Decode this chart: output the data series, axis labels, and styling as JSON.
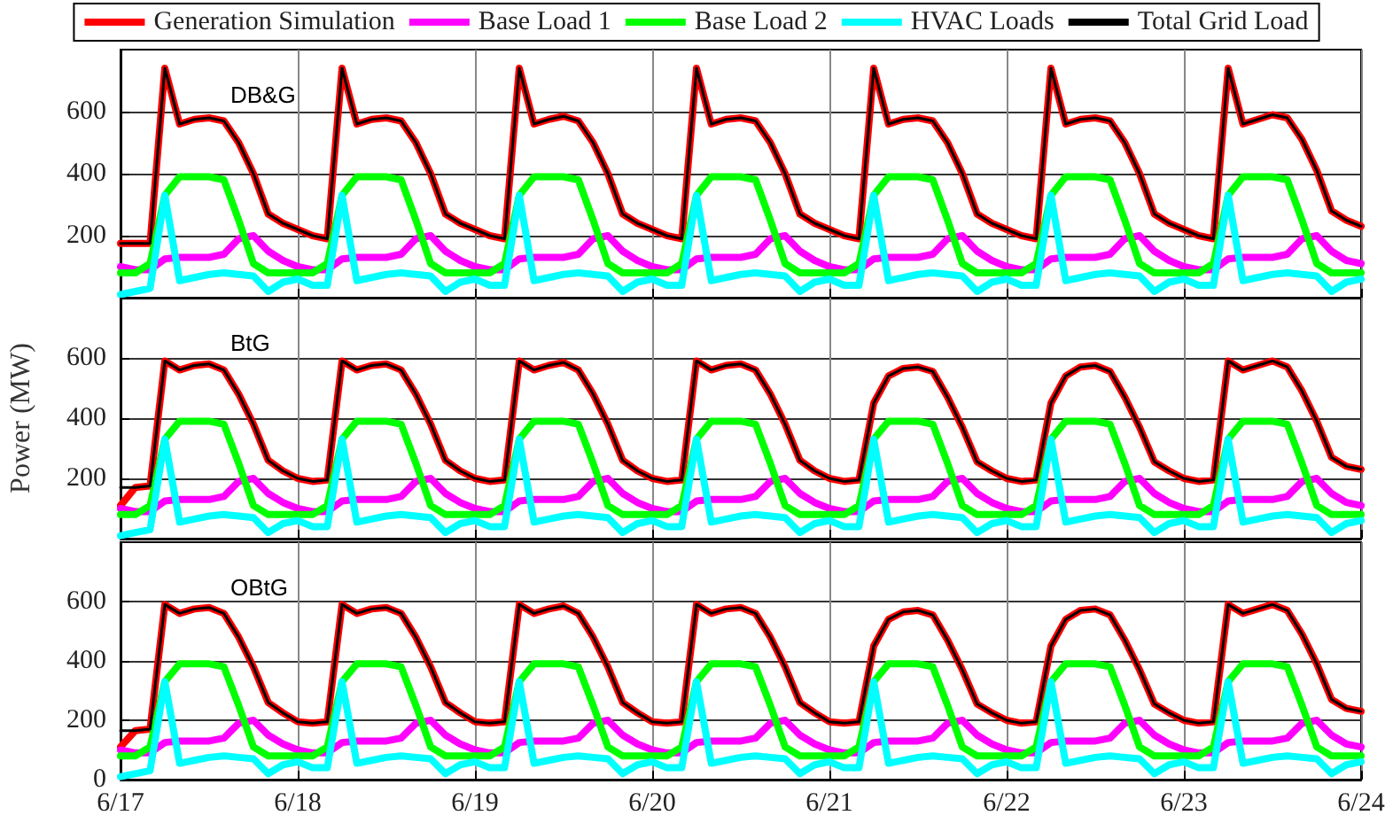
{
  "chart_data": [
    {
      "type": "line",
      "title": "DB&G",
      "legend": "top",
      "grid": true,
      "ylim": [
        0,
        800
      ],
      "yticks": [
        200,
        400,
        600
      ],
      "categories": [
        null,
        null,
        null,
        null,
        null,
        null,
        null,
        null,
        null,
        null,
        null,
        null,
        null,
        null,
        null,
        null,
        null,
        null,
        null,
        null,
        null,
        null,
        null,
        null,
        null,
        null,
        null,
        null,
        null,
        null,
        null,
        null,
        null,
        null,
        null,
        null,
        null,
        null,
        null,
        null,
        null,
        null,
        null,
        null,
        null,
        null,
        null,
        null,
        null,
        null,
        null,
        null,
        null,
        null,
        null,
        null,
        null,
        null,
        null,
        null,
        null,
        null,
        null,
        null,
        null,
        null,
        null,
        null,
        null,
        null,
        null,
        null,
        null,
        null,
        null,
        null,
        null,
        null,
        null,
        null,
        null,
        null,
        null,
        null,
        null
      ],
      "series": [
        {
          "name": "Generation Simulation",
          "color": "#ff0000",
          "values": [
            175,
            175,
            175,
            740,
            560,
            575,
            580,
            570,
            500,
            400,
            270,
            240,
            220,
            200,
            190,
            740,
            560,
            575,
            580,
            570,
            500,
            400,
            270,
            240,
            220,
            200,
            190,
            740,
            560,
            575,
            585,
            570,
            500,
            400,
            270,
            240,
            220,
            200,
            190,
            740,
            560,
            575,
            580,
            570,
            500,
            400,
            270,
            240,
            220,
            200,
            190,
            740,
            560,
            575,
            580,
            570,
            500,
            400,
            270,
            240,
            220,
            200,
            190,
            740,
            560,
            575,
            580,
            570,
            500,
            400,
            270,
            240,
            220,
            200,
            190,
            740,
            560,
            575,
            590,
            580,
            510,
            410,
            280,
            250,
            230
          ]
        },
        {
          "name": "Base Load 1",
          "color": "#ff00ff",
          "values": [
            100,
            90,
            90,
            125,
            130,
            130,
            130,
            140,
            190,
            200,
            150,
            120,
            100,
            90,
            90,
            125,
            130,
            130,
            130,
            140,
            190,
            200,
            150,
            120,
            100,
            90,
            90,
            125,
            130,
            130,
            130,
            140,
            190,
            200,
            150,
            120,
            100,
            90,
            90,
            125,
            130,
            130,
            130,
            140,
            190,
            200,
            150,
            120,
            100,
            90,
            90,
            125,
            130,
            130,
            130,
            140,
            190,
            200,
            150,
            120,
            100,
            90,
            90,
            125,
            130,
            130,
            130,
            140,
            190,
            200,
            150,
            120,
            100,
            90,
            90,
            125,
            130,
            130,
            130,
            140,
            190,
            200,
            150,
            120,
            110
          ]
        },
        {
          "name": "Base Load 2",
          "color": "#00ff00",
          "values": [
            80,
            80,
            110,
            330,
            390,
            390,
            390,
            380,
            250,
            110,
            80,
            80,
            80,
            80,
            110,
            330,
            390,
            390,
            390,
            380,
            250,
            110,
            80,
            80,
            80,
            80,
            110,
            330,
            390,
            390,
            390,
            380,
            250,
            110,
            80,
            80,
            80,
            80,
            110,
            330,
            390,
            390,
            390,
            380,
            250,
            110,
            80,
            80,
            80,
            80,
            110,
            330,
            390,
            390,
            390,
            380,
            250,
            110,
            80,
            80,
            80,
            80,
            110,
            330,
            390,
            390,
            390,
            380,
            250,
            110,
            80,
            80,
            80,
            80,
            110,
            330,
            390,
            390,
            390,
            380,
            250,
            110,
            80,
            80,
            80
          ]
        },
        {
          "name": "HVAC Loads",
          "color": "#00ffff",
          "values": [
            10,
            20,
            30,
            330,
            55,
            65,
            75,
            80,
            75,
            70,
            20,
            50,
            60,
            40,
            40,
            330,
            55,
            65,
            75,
            80,
            75,
            70,
            20,
            50,
            60,
            40,
            40,
            330,
            55,
            65,
            75,
            80,
            75,
            70,
            20,
            50,
            60,
            40,
            40,
            330,
            55,
            65,
            75,
            80,
            75,
            70,
            20,
            50,
            60,
            40,
            40,
            330,
            55,
            65,
            75,
            80,
            75,
            70,
            20,
            50,
            60,
            40,
            40,
            330,
            55,
            65,
            75,
            80,
            75,
            70,
            20,
            50,
            60,
            40,
            40,
            330,
            55,
            65,
            75,
            80,
            75,
            70,
            20,
            50,
            60
          ]
        },
        {
          "name": "Total Grid Load",
          "color": "#000000",
          "values": [
            175,
            175,
            175,
            740,
            560,
            575,
            580,
            570,
            500,
            400,
            270,
            240,
            220,
            200,
            190,
            740,
            560,
            575,
            580,
            570,
            500,
            400,
            270,
            240,
            220,
            200,
            190,
            740,
            560,
            575,
            585,
            570,
            500,
            400,
            270,
            240,
            220,
            200,
            190,
            740,
            560,
            575,
            580,
            570,
            500,
            400,
            270,
            240,
            220,
            200,
            190,
            740,
            560,
            575,
            580,
            570,
            500,
            400,
            270,
            240,
            220,
            200,
            190,
            740,
            560,
            575,
            580,
            570,
            500,
            400,
            270,
            240,
            220,
            200,
            190,
            740,
            560,
            575,
            590,
            580,
            510,
            410,
            280,
            250,
            230
          ]
        }
      ]
    },
    {
      "type": "line",
      "title": "BtG",
      "ylabel": "Power (MW)",
      "grid": true,
      "ylim": [
        0,
        800
      ],
      "yticks": [
        200,
        400,
        600
      ],
      "categories": [
        null,
        null,
        null,
        null,
        null,
        null,
        null,
        null,
        null,
        null,
        null,
        null,
        null,
        null,
        null,
        null,
        null,
        null,
        null,
        null,
        null,
        null,
        null,
        null,
        null,
        null,
        null,
        null,
        null,
        null,
        null,
        null,
        null,
        null,
        null,
        null,
        null,
        null,
        null,
        null,
        null,
        null,
        null,
        null,
        null,
        null,
        null,
        null,
        null,
        null,
        null,
        null,
        null,
        null,
        null,
        null,
        null,
        null,
        null,
        null,
        null,
        null,
        null,
        null,
        null,
        null,
        null,
        null,
        null,
        null,
        null,
        null,
        null,
        null,
        null,
        null,
        null,
        null,
        null,
        null,
        null,
        null,
        null,
        null,
        null
      ],
      "series": [
        {
          "color": "#ff0000",
          "values": [
            110,
            170,
            175,
            590,
            560,
            575,
            580,
            560,
            480,
            380,
            260,
            225,
            200,
            190,
            195,
            590,
            560,
            575,
            580,
            560,
            480,
            380,
            260,
            225,
            200,
            190,
            195,
            590,
            560,
            575,
            585,
            560,
            480,
            380,
            260,
            225,
            200,
            190,
            195,
            590,
            560,
            575,
            580,
            560,
            480,
            380,
            260,
            225,
            200,
            190,
            195,
            450,
            540,
            565,
            570,
            555,
            470,
            370,
            255,
            225,
            200,
            190,
            195,
            450,
            540,
            570,
            575,
            555,
            470,
            370,
            255,
            225,
            200,
            190,
            195,
            590,
            560,
            575,
            590,
            570,
            490,
            390,
            270,
            240,
            230
          ]
        },
        {
          "color": "#ff00ff",
          "values": [
            100,
            90,
            90,
            125,
            130,
            130,
            130,
            140,
            190,
            200,
            150,
            120,
            100,
            90,
            90,
            125,
            130,
            130,
            130,
            140,
            190,
            200,
            150,
            120,
            100,
            90,
            90,
            125,
            130,
            130,
            130,
            140,
            190,
            200,
            150,
            120,
            100,
            90,
            90,
            125,
            130,
            130,
            130,
            140,
            190,
            200,
            150,
            120,
            100,
            90,
            90,
            125,
            130,
            130,
            130,
            140,
            190,
            200,
            150,
            120,
            100,
            90,
            90,
            125,
            130,
            130,
            130,
            140,
            190,
            200,
            150,
            120,
            100,
            90,
            90,
            125,
            130,
            130,
            130,
            140,
            190,
            200,
            150,
            120,
            110
          ]
        },
        {
          "color": "#00ff00",
          "values": [
            80,
            80,
            110,
            330,
            390,
            390,
            390,
            380,
            250,
            110,
            80,
            80,
            80,
            80,
            110,
            330,
            390,
            390,
            390,
            380,
            250,
            110,
            80,
            80,
            80,
            80,
            110,
            330,
            390,
            390,
            390,
            380,
            250,
            110,
            80,
            80,
            80,
            80,
            110,
            330,
            390,
            390,
            390,
            380,
            250,
            110,
            80,
            80,
            80,
            80,
            110,
            330,
            390,
            390,
            390,
            380,
            250,
            110,
            80,
            80,
            80,
            80,
            110,
            330,
            390,
            390,
            390,
            380,
            250,
            110,
            80,
            80,
            80,
            80,
            110,
            330,
            390,
            390,
            390,
            380,
            250,
            110,
            80,
            80,
            80
          ]
        },
        {
          "color": "#00ffff",
          "values": [
            10,
            20,
            30,
            330,
            55,
            65,
            75,
            80,
            75,
            70,
            20,
            50,
            60,
            40,
            40,
            330,
            55,
            65,
            75,
            80,
            75,
            70,
            20,
            50,
            60,
            40,
            40,
            330,
            55,
            65,
            75,
            80,
            75,
            70,
            20,
            50,
            60,
            40,
            40,
            330,
            55,
            65,
            75,
            80,
            75,
            70,
            20,
            50,
            60,
            40,
            40,
            330,
            55,
            65,
            75,
            80,
            75,
            70,
            20,
            50,
            60,
            40,
            40,
            330,
            55,
            65,
            75,
            80,
            75,
            70,
            20,
            50,
            60,
            40,
            40,
            330,
            55,
            65,
            75,
            80,
            75,
            70,
            20,
            50,
            60
          ]
        },
        {
          "color": "#000000",
          "values": [
            170,
            170,
            175,
            590,
            560,
            575,
            580,
            560,
            480,
            380,
            260,
            225,
            200,
            190,
            195,
            590,
            560,
            575,
            580,
            560,
            480,
            380,
            260,
            225,
            200,
            190,
            195,
            590,
            560,
            575,
            585,
            560,
            480,
            380,
            260,
            225,
            200,
            190,
            195,
            590,
            560,
            575,
            580,
            560,
            480,
            380,
            260,
            225,
            200,
            190,
            195,
            450,
            540,
            565,
            570,
            555,
            470,
            370,
            255,
            225,
            200,
            190,
            195,
            450,
            540,
            570,
            575,
            555,
            470,
            370,
            255,
            225,
            200,
            190,
            195,
            590,
            560,
            575,
            590,
            570,
            490,
            390,
            270,
            240,
            230
          ]
        }
      ]
    },
    {
      "type": "line",
      "title": "OBtG",
      "grid": true,
      "ylim": [
        0,
        800
      ],
      "yticks": [
        0,
        200,
        400,
        600
      ],
      "categories": [
        "6/17",
        null,
        null,
        null,
        null,
        null,
        null,
        null,
        null,
        null,
        null,
        null,
        "6/18",
        null,
        null,
        null,
        null,
        null,
        null,
        null,
        null,
        null,
        null,
        null,
        "6/19",
        null,
        null,
        null,
        null,
        null,
        null,
        null,
        null,
        null,
        null,
        null,
        "6/20",
        null,
        null,
        null,
        null,
        null,
        null,
        null,
        null,
        null,
        null,
        null,
        "6/21",
        null,
        null,
        null,
        null,
        null,
        null,
        null,
        null,
        null,
        null,
        null,
        "6/22",
        null,
        null,
        null,
        null,
        null,
        null,
        null,
        null,
        null,
        null,
        null,
        "6/23",
        null,
        null,
        null,
        null,
        null,
        null,
        null,
        null,
        null,
        null,
        null,
        "6/24"
      ],
      "series": [
        {
          "color": "#ff0000",
          "values": [
            110,
            165,
            170,
            590,
            560,
            575,
            580,
            560,
            480,
            380,
            260,
            225,
            195,
            190,
            195,
            590,
            560,
            575,
            580,
            560,
            480,
            380,
            260,
            225,
            195,
            190,
            195,
            590,
            560,
            575,
            585,
            560,
            480,
            380,
            260,
            225,
            195,
            190,
            195,
            590,
            560,
            575,
            580,
            560,
            480,
            380,
            260,
            225,
            195,
            190,
            195,
            450,
            540,
            565,
            570,
            555,
            470,
            370,
            255,
            225,
            200,
            190,
            195,
            450,
            540,
            570,
            575,
            555,
            470,
            370,
            255,
            225,
            200,
            190,
            195,
            590,
            560,
            575,
            590,
            570,
            490,
            390,
            270,
            240,
            230
          ]
        },
        {
          "color": "#ff00ff",
          "values": [
            100,
            90,
            90,
            125,
            130,
            130,
            130,
            140,
            190,
            200,
            150,
            120,
            100,
            90,
            90,
            125,
            130,
            130,
            130,
            140,
            190,
            200,
            150,
            120,
            100,
            90,
            90,
            125,
            130,
            130,
            130,
            140,
            190,
            200,
            150,
            120,
            100,
            90,
            90,
            125,
            130,
            130,
            130,
            140,
            190,
            200,
            150,
            120,
            100,
            90,
            90,
            125,
            130,
            130,
            130,
            140,
            190,
            200,
            150,
            120,
            100,
            90,
            90,
            125,
            130,
            130,
            130,
            140,
            190,
            200,
            150,
            120,
            100,
            90,
            90,
            125,
            130,
            130,
            130,
            140,
            190,
            200,
            150,
            120,
            110
          ]
        },
        {
          "color": "#00ff00",
          "values": [
            80,
            80,
            110,
            330,
            390,
            390,
            390,
            380,
            250,
            110,
            80,
            80,
            80,
            80,
            110,
            330,
            390,
            390,
            390,
            380,
            250,
            110,
            80,
            80,
            80,
            80,
            110,
            330,
            390,
            390,
            390,
            380,
            250,
            110,
            80,
            80,
            80,
            80,
            110,
            330,
            390,
            390,
            390,
            380,
            250,
            110,
            80,
            80,
            80,
            80,
            110,
            330,
            390,
            390,
            390,
            380,
            250,
            110,
            80,
            80,
            80,
            80,
            110,
            330,
            390,
            390,
            390,
            380,
            250,
            110,
            80,
            80,
            80,
            80,
            110,
            330,
            390,
            390,
            390,
            380,
            250,
            110,
            80,
            80,
            80
          ]
        },
        {
          "color": "#00ffff",
          "values": [
            10,
            20,
            30,
            330,
            55,
            65,
            75,
            80,
            75,
            70,
            20,
            50,
            60,
            40,
            40,
            330,
            55,
            65,
            75,
            80,
            75,
            70,
            20,
            50,
            60,
            40,
            40,
            330,
            55,
            65,
            75,
            80,
            75,
            70,
            20,
            50,
            60,
            40,
            40,
            330,
            55,
            65,
            75,
            80,
            75,
            70,
            20,
            50,
            60,
            40,
            40,
            330,
            55,
            65,
            75,
            80,
            75,
            70,
            20,
            50,
            60,
            40,
            40,
            330,
            55,
            65,
            75,
            80,
            75,
            70,
            20,
            50,
            60,
            40,
            40,
            330,
            55,
            65,
            75,
            80,
            75,
            70,
            20,
            50,
            60
          ]
        },
        {
          "color": "#000000",
          "values": [
            165,
            165,
            170,
            590,
            560,
            575,
            580,
            560,
            480,
            380,
            260,
            225,
            195,
            190,
            195,
            590,
            560,
            575,
            580,
            560,
            480,
            380,
            260,
            225,
            195,
            190,
            195,
            590,
            560,
            575,
            585,
            560,
            480,
            380,
            260,
            225,
            195,
            190,
            195,
            590,
            560,
            575,
            580,
            560,
            480,
            380,
            260,
            225,
            195,
            190,
            195,
            450,
            540,
            565,
            570,
            555,
            470,
            370,
            255,
            225,
            200,
            190,
            195,
            450,
            540,
            570,
            575,
            555,
            470,
            370,
            255,
            225,
            200,
            190,
            195,
            590,
            560,
            575,
            590,
            570,
            490,
            390,
            270,
            240,
            230
          ]
        }
      ]
    }
  ]
}
